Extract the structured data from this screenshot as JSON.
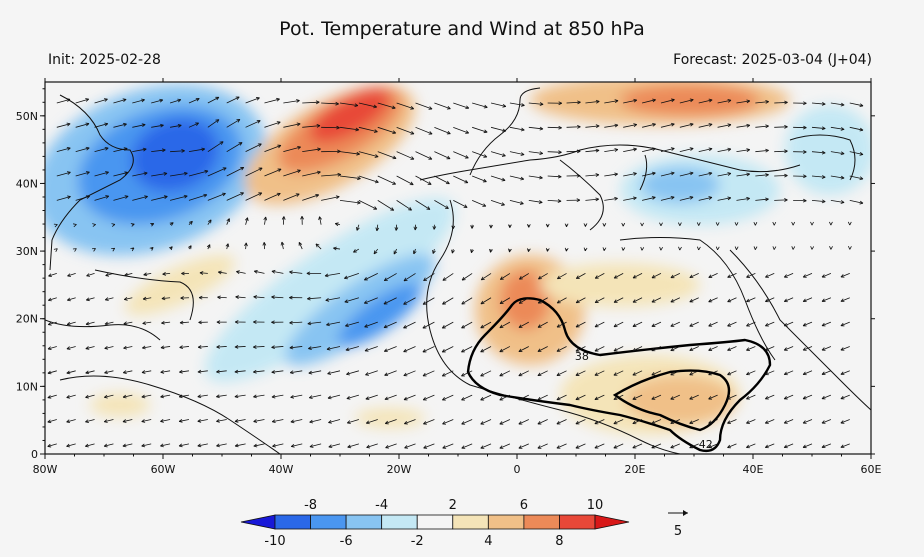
{
  "title": "Pot. Temperature and Wind at 850 hPa",
  "init_label": "Init: 2025-02-28",
  "forecast_label": "Forecast: 2025-03-04 (J+04)",
  "map": {
    "lon_range": [
      -80,
      60
    ],
    "lat_range": [
      0,
      55
    ],
    "x_ticks": [
      {
        "value": -80,
        "label": "80W"
      },
      {
        "value": -60,
        "label": "60W"
      },
      {
        "value": -40,
        "label": "40W"
      },
      {
        "value": -20,
        "label": "20W"
      },
      {
        "value": 0,
        "label": "0"
      },
      {
        "value": 20,
        "label": "20E"
      },
      {
        "value": 40,
        "label": "40E"
      },
      {
        "value": 60,
        "label": "60E"
      }
    ],
    "y_ticks": [
      {
        "value": 0,
        "label": "0"
      },
      {
        "value": 10,
        "label": "10N"
      },
      {
        "value": 20,
        "label": "20N"
      },
      {
        "value": 30,
        "label": "30N"
      },
      {
        "value": 40,
        "label": "40N"
      },
      {
        "value": 50,
        "label": "50N"
      }
    ],
    "contour_labels": [
      {
        "text": "38",
        "lon": 11,
        "lat": 14.5
      },
      {
        "text": "42",
        "lon": 32,
        "lat": 1.5
      }
    ]
  },
  "colorbar": {
    "colors": [
      "#1818d8",
      "#2a68e8",
      "#4a96f0",
      "#88c4f2",
      "#c4e8f4",
      "#f4f4f4",
      "#f4e4b8",
      "#f0c088",
      "#ec8a58",
      "#e84838",
      "#d81818"
    ],
    "top_labels": [
      "-8",
      "-4",
      "2",
      "6",
      "10"
    ],
    "bottom_labels": [
      "-10",
      "-6",
      "-2",
      "4",
      "8"
    ]
  },
  "vector_reference": {
    "label": "5"
  }
}
